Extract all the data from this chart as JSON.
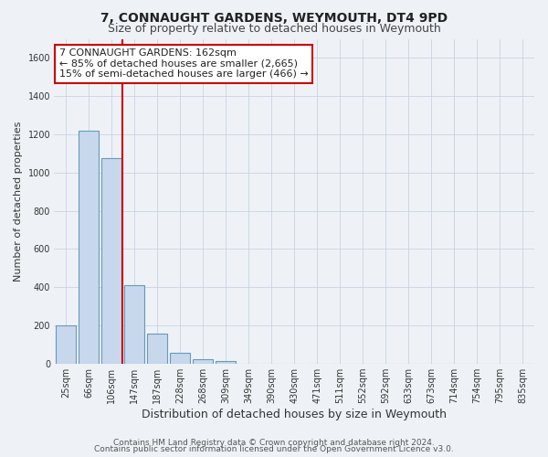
{
  "title": "7, CONNAUGHT GARDENS, WEYMOUTH, DT4 9PD",
  "subtitle": "Size of property relative to detached houses in Weymouth",
  "xlabel": "Distribution of detached houses by size in Weymouth",
  "ylabel": "Number of detached properties",
  "bar_labels": [
    "25sqm",
    "66sqm",
    "106sqm",
    "147sqm",
    "187sqm",
    "228sqm",
    "268sqm",
    "309sqm",
    "349sqm",
    "390sqm",
    "430sqm",
    "471sqm",
    "511sqm",
    "552sqm",
    "592sqm",
    "633sqm",
    "673sqm",
    "714sqm",
    "754sqm",
    "795sqm",
    "835sqm"
  ],
  "bar_values": [
    200,
    1220,
    1075,
    410,
    155,
    55,
    25,
    15,
    0,
    0,
    0,
    0,
    0,
    0,
    0,
    0,
    0,
    0,
    0,
    0,
    0
  ],
  "bar_color": "#c8d8ec",
  "bar_edge_color": "#6699bb",
  "ylim": [
    0,
    1700
  ],
  "yticks": [
    0,
    200,
    400,
    600,
    800,
    1000,
    1200,
    1400,
    1600
  ],
  "vline_x": 2.5,
  "vline_color": "#cc0000",
  "annotation_text": "7 CONNAUGHT GARDENS: 162sqm\n← 85% of detached houses are smaller (2,665)\n15% of semi-detached houses are larger (466) →",
  "annotation_box_color": "#ffffff",
  "annotation_box_edge": "#cc0000",
  "footer_line1": "Contains HM Land Registry data © Crown copyright and database right 2024.",
  "footer_line2": "Contains public sector information licensed under the Open Government Licence v3.0.",
  "bg_color": "#eef2f7",
  "plot_bg_color": "#eef2f7",
  "title_fontsize": 10,
  "subtitle_fontsize": 9,
  "xlabel_fontsize": 9,
  "ylabel_fontsize": 8,
  "tick_fontsize": 7,
  "footer_fontsize": 6.5,
  "annotation_fontsize": 8
}
